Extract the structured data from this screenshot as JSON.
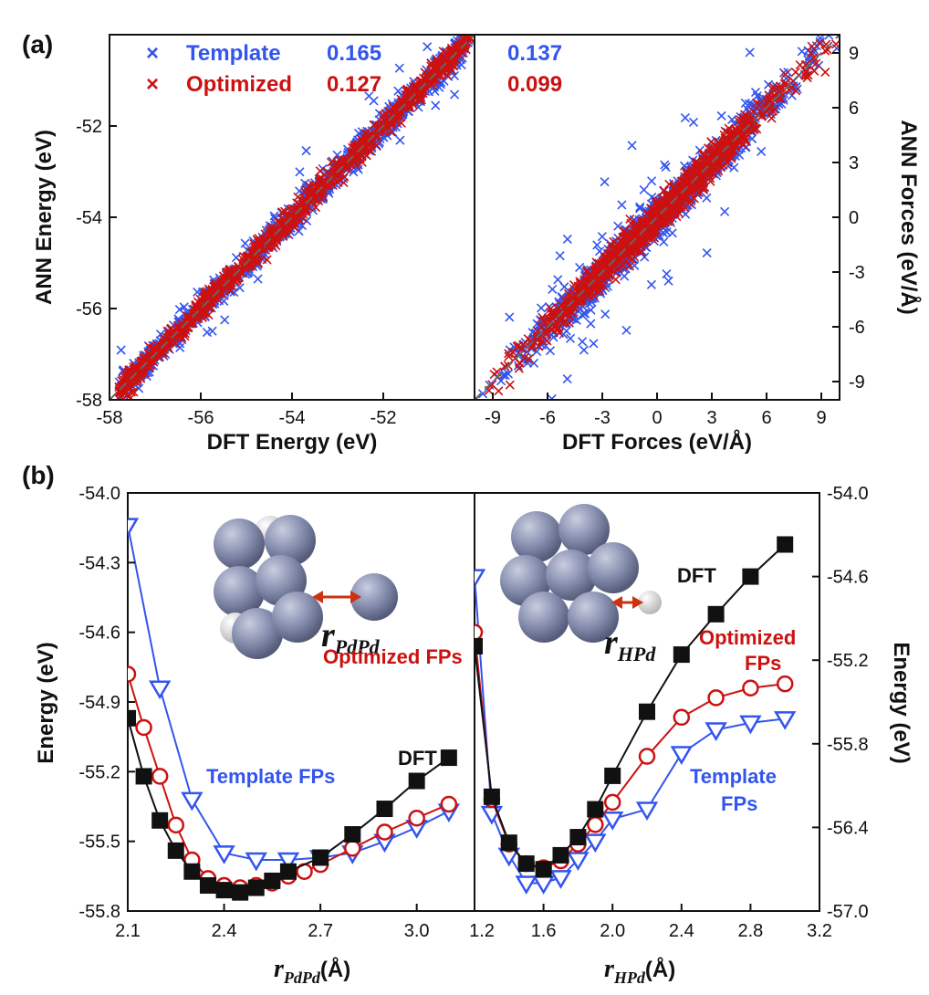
{
  "colors": {
    "template": "#3355ee",
    "optimized": "#cc1111",
    "dft": "#111111",
    "sphere": "#8890b0"
  },
  "chart_data": [
    {
      "panel": "(a)",
      "type": "scatter",
      "xlabel": "DFT Energy (eV)",
      "ylabel": "ANN Energy (eV)",
      "xlim": [
        -58,
        -50
      ],
      "ylim": [
        -58,
        -50
      ],
      "xticks": [
        "-58",
        "-56",
        "-54",
        "-52"
      ],
      "yticks": [
        "-58",
        "-56",
        "-54",
        "-52"
      ],
      "series": [
        {
          "name": "Template",
          "rmse": "0.165",
          "marker": "x",
          "color": "#3355ee"
        },
        {
          "name": "Optimized",
          "rmse": "0.127",
          "marker": "x",
          "color": "#cc1111"
        }
      ],
      "x_range_of_points": [
        -57.8,
        -50.1
      ],
      "reference_line": "y = x (dashed)"
    },
    {
      "panel": "(a)",
      "type": "scatter",
      "xlabel": "DFT Forces (eV/Å)",
      "ylabel": "ANN Forces (eV/Å)",
      "xlim": [
        -10,
        10
      ],
      "ylim": [
        -10,
        10
      ],
      "xticks": [
        "-9",
        "-6",
        "-3",
        "0",
        "3",
        "6",
        "9"
      ],
      "yticks": [
        "-9",
        "-6",
        "-3",
        "0",
        "3",
        "6",
        "9"
      ],
      "series": [
        {
          "name": "Template",
          "rmse": "0.137",
          "marker": "x",
          "color": "#3355ee"
        },
        {
          "name": "Optimized",
          "rmse": "0.099",
          "marker": "x",
          "color": "#cc1111"
        }
      ],
      "reference_line": "y = x (dashed)"
    },
    {
      "panel": "(b)",
      "type": "line",
      "xlabel": "r",
      "xlabel_sub": "PdPd",
      "xlabel_unit": "(Å)",
      "ylabel": "Energy (eV)",
      "xlim": [
        2.1,
        3.18
      ],
      "ylim": [
        -55.8,
        -54.0
      ],
      "xticks": [
        "2.1",
        "2.4",
        "2.7",
        "3.0"
      ],
      "yticks": [
        "-54.0",
        "-54.3",
        "-54.6",
        "-54.9",
        "-55.2",
        "-55.5",
        "-55.8"
      ],
      "annotations": {
        "dft": "DFT",
        "template": "Template FPs",
        "optimized": "Optimized FPs",
        "inset_r": "r",
        "inset_sub": "PdPd"
      },
      "series": [
        {
          "name": "DFT",
          "x": [
            2.1,
            2.15,
            2.2,
            2.25,
            2.3,
            2.35,
            2.4,
            2.45,
            2.5,
            2.55,
            2.6,
            2.7,
            2.8,
            2.9,
            3.0,
            3.1
          ],
          "y": [
            -54.97,
            -55.22,
            -55.41,
            -55.54,
            -55.63,
            -55.69,
            -55.71,
            -55.72,
            -55.7,
            -55.67,
            -55.63,
            -55.57,
            -55.47,
            -55.36,
            -55.24,
            -55.14
          ]
        },
        {
          "name": "Optimized FPs",
          "x": [
            2.1,
            2.15,
            2.2,
            2.25,
            2.3,
            2.35,
            2.4,
            2.45,
            2.5,
            2.55,
            2.6,
            2.65,
            2.7,
            2.8,
            2.9,
            3.0,
            3.1
          ],
          "y": [
            -54.78,
            -55.01,
            -55.22,
            -55.43,
            -55.58,
            -55.66,
            -55.69,
            -55.7,
            -55.69,
            -55.68,
            -55.65,
            -55.63,
            -55.6,
            -55.53,
            -55.46,
            -55.4,
            -55.34
          ]
        },
        {
          "name": "Template FPs",
          "x": [
            2.1,
            2.2,
            2.3,
            2.4,
            2.5,
            2.6,
            2.7,
            2.8,
            2.9,
            3.0,
            3.1
          ],
          "y": [
            -54.14,
            -54.84,
            -55.32,
            -55.55,
            -55.58,
            -55.58,
            -55.57,
            -55.55,
            -55.5,
            -55.44,
            -55.37
          ]
        }
      ]
    },
    {
      "panel": "(b)",
      "type": "line",
      "xlabel": "r",
      "xlabel_sub": "HPd",
      "xlabel_unit": "(Å)",
      "ylabel": "Energy (eV)",
      "xlim": [
        1.2,
        3.2
      ],
      "ylim": [
        -57.0,
        -54.0
      ],
      "xticks": [
        "1.2",
        "1.6",
        "2.0",
        "2.4",
        "2.8",
        "3.2"
      ],
      "yticks": [
        "-54.0",
        "-54.6",
        "-55.2",
        "-55.8",
        "-56.4",
        "-57.0"
      ],
      "annotations": {
        "dft": "DFT",
        "optimized_1": "Optimized",
        "optimized_2": "FPs",
        "template_1": "Template",
        "template_2": "FPs",
        "inset_r": "r",
        "inset_sub": "HPd"
      },
      "series": [
        {
          "name": "DFT",
          "x": [
            1.2,
            1.3,
            1.4,
            1.5,
            1.6,
            1.7,
            1.8,
            1.9,
            2.0,
            2.2,
            2.4,
            2.6,
            2.8,
            3.0
          ],
          "y": [
            -55.1,
            -56.18,
            -56.51,
            -56.66,
            -56.7,
            -56.6,
            -56.47,
            -56.27,
            -56.03,
            -55.57,
            -55.16,
            -54.87,
            -54.6,
            -54.37
          ]
        },
        {
          "name": "Optimized FPs",
          "x": [
            1.2,
            1.3,
            1.4,
            1.5,
            1.6,
            1.7,
            1.8,
            1.9,
            2.0,
            2.2,
            2.4,
            2.6,
            2.8,
            3.0
          ],
          "y": [
            -55.0,
            -56.2,
            -56.52,
            -56.66,
            -56.69,
            -56.64,
            -56.52,
            -56.38,
            -56.22,
            -55.89,
            -55.61,
            -55.47,
            -55.4,
            -55.37
          ]
        },
        {
          "name": "Template FPs",
          "x": [
            1.2,
            1.3,
            1.4,
            1.5,
            1.6,
            1.7,
            1.8,
            1.9,
            2.0,
            2.2,
            2.4,
            2.6,
            2.8,
            3.0
          ],
          "y": [
            -54.6,
            -56.3,
            -56.6,
            -56.8,
            -56.8,
            -56.76,
            -56.63,
            -56.5,
            -56.34,
            -56.27,
            -55.87,
            -55.7,
            -55.65,
            -55.62
          ]
        }
      ]
    }
  ]
}
